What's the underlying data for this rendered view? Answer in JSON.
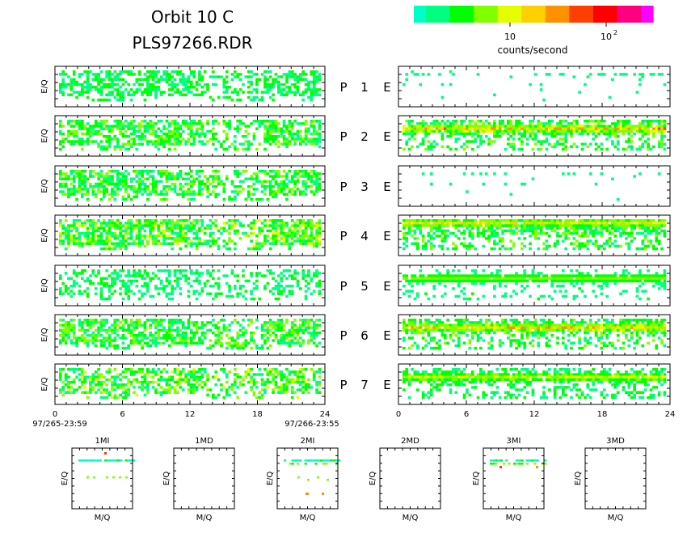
{
  "header": {
    "title_line1": "Orbit 10 C",
    "title_line2": "PLS97266.RDR"
  },
  "colorbar": {
    "label": "counts/second",
    "tick_labels": [
      "10",
      "10"
    ],
    "tick_exponents": [
      "",
      "2"
    ],
    "colors": [
      "#00ffc8",
      "#00ff80",
      "#00ff00",
      "#80ff00",
      "#e6ff00",
      "#ffd000",
      "#ff9000",
      "#ff4000",
      "#ff0000",
      "#ff0080",
      "#ff00ff"
    ]
  },
  "chart_data": {
    "type": "heatmap",
    "color_scale": "log counts/second",
    "panels_left": {
      "ylabel": "E/Q",
      "x_range": [
        0,
        24
      ],
      "x_ticks": [
        0,
        6,
        12,
        18,
        24
      ],
      "x_start_label": "97/265-23:59",
      "x_end_label": "97/266-23:55",
      "rows": [
        {
          "label": "P",
          "index": "1",
          "density": 0.55,
          "intensity": 0.15
        },
        {
          "label": "P",
          "index": "2",
          "density": 0.62,
          "intensity": 0.2
        },
        {
          "label": "P",
          "index": "3",
          "density": 0.6,
          "intensity": 0.2
        },
        {
          "label": "P",
          "index": "4",
          "density": 0.7,
          "intensity": 0.25
        },
        {
          "label": "P",
          "index": "5",
          "density": 0.45,
          "intensity": 0.12
        },
        {
          "label": "P",
          "index": "6",
          "density": 0.62,
          "intensity": 0.22
        },
        {
          "label": "P",
          "index": "7",
          "density": 0.55,
          "intensity": 0.25
        }
      ]
    },
    "panels_right": {
      "x_range": [
        0,
        24
      ],
      "x_ticks": [
        0,
        6,
        12,
        18,
        24
      ],
      "rows": [
        {
          "label": "E",
          "density": 0.12,
          "intensity": 0.05,
          "band": 0.0
        },
        {
          "label": "E",
          "density": 0.55,
          "intensity": 0.2,
          "band": 0.8
        },
        {
          "label": "E",
          "density": 0.08,
          "intensity": 0.05,
          "band": 0.0
        },
        {
          "label": "E",
          "density": 0.6,
          "intensity": 0.2,
          "band": 0.55
        },
        {
          "label": "E",
          "density": 0.25,
          "intensity": 0.08,
          "band": 0.1
        },
        {
          "label": "E",
          "density": 0.5,
          "intensity": 0.2,
          "band": 0.7
        },
        {
          "label": "E",
          "density": 0.45,
          "intensity": 0.15,
          "band": 0.3
        }
      ]
    },
    "mq_panels": [
      {
        "title": "1MI",
        "xlabel": "M/Q",
        "ylabel": "E/Q",
        "has_data": true
      },
      {
        "title": "1MD",
        "xlabel": "M/Q",
        "ylabel": "E/Q",
        "has_data": false
      },
      {
        "title": "2MI",
        "xlabel": "M/Q",
        "ylabel": "E/Q",
        "has_data": true
      },
      {
        "title": "2MD",
        "xlabel": "M/Q",
        "ylabel": "E/Q",
        "has_data": false
      },
      {
        "title": "3MI",
        "xlabel": "M/Q",
        "ylabel": "E/Q",
        "has_data": true
      },
      {
        "title": "3MD",
        "xlabel": "M/Q",
        "ylabel": "E/Q",
        "has_data": false
      }
    ]
  }
}
